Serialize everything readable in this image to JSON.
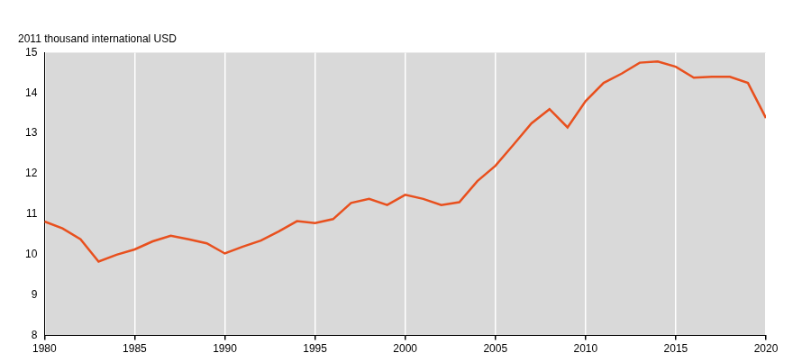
{
  "chart_data": {
    "type": "line",
    "y_label": "2011 thousand international USD",
    "x": [
      1980,
      1981,
      1982,
      1983,
      1984,
      1985,
      1986,
      1987,
      1988,
      1989,
      1990,
      1991,
      1992,
      1993,
      1994,
      1995,
      1996,
      1997,
      1998,
      1999,
      2000,
      2001,
      2002,
      2003,
      2004,
      2005,
      2006,
      2007,
      2008,
      2009,
      2010,
      2011,
      2012,
      2013,
      2014,
      2015,
      2016,
      2017,
      2018,
      2019,
      2020
    ],
    "values": [
      10.82,
      10.65,
      10.38,
      9.83,
      10.0,
      10.13,
      10.33,
      10.47,
      10.38,
      10.28,
      10.03,
      10.2,
      10.35,
      10.58,
      10.83,
      10.78,
      10.88,
      11.28,
      11.38,
      11.23,
      11.48,
      11.38,
      11.23,
      11.3,
      11.82,
      12.2,
      12.72,
      13.25,
      13.6,
      13.15,
      13.8,
      14.25,
      14.48,
      14.75,
      14.78,
      14.65,
      14.38,
      14.4,
      14.4,
      14.25,
      13.38
    ],
    "color": "#e8501e",
    "xlim": [
      1980,
      2020
    ],
    "xticks": [
      1980,
      1985,
      1990,
      1995,
      2000,
      2005,
      2010,
      2015,
      2020
    ],
    "ylim": [
      8,
      15
    ],
    "yticks": [
      8,
      9,
      10,
      11,
      12,
      13,
      14,
      15
    ],
    "grid": true
  }
}
